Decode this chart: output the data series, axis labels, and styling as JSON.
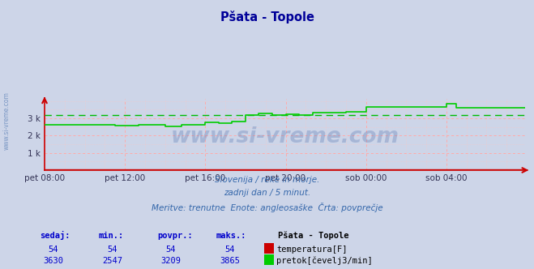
{
  "title": "Pšata - Topole",
  "background_color": "#cdd5e8",
  "plot_bg_color": "#cdd5e8",
  "grid_h_color": "#ffaaaa",
  "grid_v_color": "#ffaaaa",
  "minor_grid_color": "#f5c8c8",
  "ylim": [
    0,
    4133
  ],
  "yticks": [
    1000,
    2000,
    3000
  ],
  "ytick_labels": [
    "1 k",
    "2 k",
    "3 k"
  ],
  "xtick_labels": [
    "pet 08:00",
    "pet 12:00",
    "pet 16:00",
    "pet 20:00",
    "sob 00:00",
    "sob 04:00"
  ],
  "xtick_positions": [
    0,
    48,
    96,
    144,
    192,
    240
  ],
  "total_points": 288,
  "avg_flow": 3209,
  "line_color_flow": "#00cc00",
  "line_color_temp": "#cc0000",
  "avg_line_color": "#00bb00",
  "subtitle1": "Slovenija / reke in morje.",
  "subtitle2": "zadnji dan / 5 minut.",
  "subtitle3": "Meritve: trenutne  Enote: angleosaške  Črta: povprečje",
  "footer_label1": "sedaj:",
  "footer_label2": "min.:",
  "footer_label3": "povpr.:",
  "footer_label4": "maks.:",
  "footer_station": "Pšata - Topole",
  "footer_temp_label": "temperatura[F]",
  "footer_flow_label": "pretok[čevelj3/min]",
  "footer_color": "#0000cc",
  "temp_vals": [
    "54",
    "54",
    "54",
    "54"
  ],
  "flow_vals": [
    "3630",
    "2547",
    "3209",
    "3865"
  ],
  "watermark": "www.si-vreme.com",
  "left_watermark": "www.si-vreme.com",
  "spine_color": "#cc0000",
  "title_color": "#000099",
  "subtitle_color": "#3366aa",
  "footer_text_color": "#0000cc"
}
